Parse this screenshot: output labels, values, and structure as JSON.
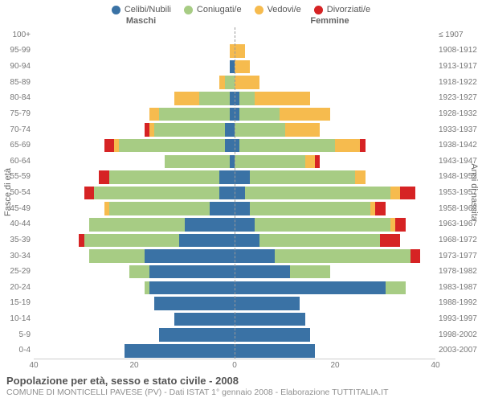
{
  "chart": {
    "type": "population-pyramid",
    "legend": [
      {
        "key": "celibi",
        "label": "Celibi/Nubili",
        "color": "#3a72a5"
      },
      {
        "key": "coniugati",
        "label": "Coniugati/e",
        "color": "#a7cc84"
      },
      {
        "key": "vedovi",
        "label": "Vedovi/e",
        "color": "#f6bb4e"
      },
      {
        "key": "divorziati",
        "label": "Divorziati/e",
        "color": "#d62324"
      }
    ],
    "headers": {
      "left": "Maschi",
      "right": "Femmine"
    },
    "axis_labels": {
      "left": "Fasce di età",
      "right": "Anni di nascita"
    },
    "x": {
      "max": 40,
      "ticks": [
        40,
        20,
        0,
        20,
        40
      ]
    },
    "segment_order_left": [
      "divorziati",
      "vedovi",
      "coniugati",
      "celibi"
    ],
    "segment_order_right": [
      "celibi",
      "coniugati",
      "vedovi",
      "divorziati"
    ],
    "rows": [
      {
        "age": "100+",
        "birth": "≤ 1907",
        "m": {
          "celibi": 0,
          "coniugati": 0,
          "vedovi": 0,
          "divorziati": 0
        },
        "f": {
          "celibi": 0,
          "coniugati": 0,
          "vedovi": 0,
          "divorziati": 0
        }
      },
      {
        "age": "95-99",
        "birth": "1908-1912",
        "m": {
          "celibi": 0,
          "coniugati": 0,
          "vedovi": 1,
          "divorziati": 0
        },
        "f": {
          "celibi": 0,
          "coniugati": 0,
          "vedovi": 2,
          "divorziati": 0
        }
      },
      {
        "age": "90-94",
        "birth": "1913-1917",
        "m": {
          "celibi": 1,
          "coniugati": 0,
          "vedovi": 0,
          "divorziati": 0
        },
        "f": {
          "celibi": 0,
          "coniugati": 0,
          "vedovi": 3,
          "divorziati": 0
        }
      },
      {
        "age": "85-89",
        "birth": "1918-1922",
        "m": {
          "celibi": 0,
          "coniugati": 2,
          "vedovi": 1,
          "divorziati": 0
        },
        "f": {
          "celibi": 0,
          "coniugati": 0,
          "vedovi": 5,
          "divorziati": 0
        }
      },
      {
        "age": "80-84",
        "birth": "1923-1927",
        "m": {
          "celibi": 1,
          "coniugati": 6,
          "vedovi": 5,
          "divorziati": 0
        },
        "f": {
          "celibi": 1,
          "coniugati": 3,
          "vedovi": 11,
          "divorziati": 0
        }
      },
      {
        "age": "75-79",
        "birth": "1928-1932",
        "m": {
          "celibi": 1,
          "coniugati": 14,
          "vedovi": 2,
          "divorziati": 0
        },
        "f": {
          "celibi": 1,
          "coniugati": 8,
          "vedovi": 10,
          "divorziati": 0
        }
      },
      {
        "age": "70-74",
        "birth": "1933-1937",
        "m": {
          "celibi": 2,
          "coniugati": 14,
          "vedovi": 1,
          "divorziati": 1
        },
        "f": {
          "celibi": 0,
          "coniugati": 10,
          "vedovi": 7,
          "divorziati": 0
        }
      },
      {
        "age": "65-69",
        "birth": "1938-1942",
        "m": {
          "celibi": 2,
          "coniugati": 21,
          "vedovi": 1,
          "divorziati": 2
        },
        "f": {
          "celibi": 1,
          "coniugati": 19,
          "vedovi": 5,
          "divorziati": 1
        }
      },
      {
        "age": "60-64",
        "birth": "1943-1947",
        "m": {
          "celibi": 1,
          "coniugati": 13,
          "vedovi": 0,
          "divorziati": 0
        },
        "f": {
          "celibi": 0,
          "coniugati": 14,
          "vedovi": 2,
          "divorziati": 1
        }
      },
      {
        "age": "55-59",
        "birth": "1948-1952",
        "m": {
          "celibi": 3,
          "coniugati": 22,
          "vedovi": 0,
          "divorziati": 2
        },
        "f": {
          "celibi": 3,
          "coniugati": 21,
          "vedovi": 2,
          "divorziati": 0
        }
      },
      {
        "age": "50-54",
        "birth": "1953-1957",
        "m": {
          "celibi": 3,
          "coniugati": 25,
          "vedovi": 0,
          "divorziati": 2
        },
        "f": {
          "celibi": 2,
          "coniugati": 29,
          "vedovi": 2,
          "divorziati": 3
        }
      },
      {
        "age": "45-49",
        "birth": "1958-1962",
        "m": {
          "celibi": 5,
          "coniugati": 20,
          "vedovi": 1,
          "divorziati": 0
        },
        "f": {
          "celibi": 3,
          "coniugati": 24,
          "vedovi": 1,
          "divorziati": 2
        }
      },
      {
        "age": "40-44",
        "birth": "1963-1967",
        "m": {
          "celibi": 10,
          "coniugati": 19,
          "vedovi": 0,
          "divorziati": 0
        },
        "f": {
          "celibi": 4,
          "coniugati": 27,
          "vedovi": 1,
          "divorziati": 2
        }
      },
      {
        "age": "35-39",
        "birth": "1968-1972",
        "m": {
          "celibi": 11,
          "coniugati": 19,
          "vedovi": 0,
          "divorziati": 1
        },
        "f": {
          "celibi": 5,
          "coniugati": 24,
          "vedovi": 0,
          "divorziati": 4
        }
      },
      {
        "age": "30-34",
        "birth": "1973-1977",
        "m": {
          "celibi": 18,
          "coniugati": 11,
          "vedovi": 0,
          "divorziati": 0
        },
        "f": {
          "celibi": 8,
          "coniugati": 27,
          "vedovi": 0,
          "divorziati": 2
        }
      },
      {
        "age": "25-29",
        "birth": "1978-1982",
        "m": {
          "celibi": 17,
          "coniugati": 4,
          "vedovi": 0,
          "divorziati": 0
        },
        "f": {
          "celibi": 11,
          "coniugati": 8,
          "vedovi": 0,
          "divorziati": 0
        }
      },
      {
        "age": "20-24",
        "birth": "1983-1987",
        "m": {
          "celibi": 17,
          "coniugati": 1,
          "vedovi": 0,
          "divorziati": 0
        },
        "f": {
          "celibi": 30,
          "coniugati": 4,
          "vedovi": 0,
          "divorziati": 0
        }
      },
      {
        "age": "15-19",
        "birth": "1988-1992",
        "m": {
          "celibi": 16,
          "coniugati": 0,
          "vedovi": 0,
          "divorziati": 0
        },
        "f": {
          "celibi": 13,
          "coniugati": 0,
          "vedovi": 0,
          "divorziati": 0
        }
      },
      {
        "age": "10-14",
        "birth": "1993-1997",
        "m": {
          "celibi": 12,
          "coniugati": 0,
          "vedovi": 0,
          "divorziati": 0
        },
        "f": {
          "celibi": 14,
          "coniugati": 0,
          "vedovi": 0,
          "divorziati": 0
        }
      },
      {
        "age": "5-9",
        "birth": "1998-2002",
        "m": {
          "celibi": 15,
          "coniugati": 0,
          "vedovi": 0,
          "divorziati": 0
        },
        "f": {
          "celibi": 15,
          "coniugati": 0,
          "vedovi": 0,
          "divorziati": 0
        }
      },
      {
        "age": "0-4",
        "birth": "2003-2007",
        "m": {
          "celibi": 22,
          "coniugati": 0,
          "vedovi": 0,
          "divorziati": 0
        },
        "f": {
          "celibi": 16,
          "coniugati": 0,
          "vedovi": 0,
          "divorziati": 0
        }
      }
    ],
    "title": "Popolazione per età, sesso e stato civile - 2008",
    "subtitle": "COMUNE DI MONTICELLI PAVESE (PV) - Dati ISTAT 1° gennaio 2008 - Elaborazione TUTTITALIA.IT"
  }
}
